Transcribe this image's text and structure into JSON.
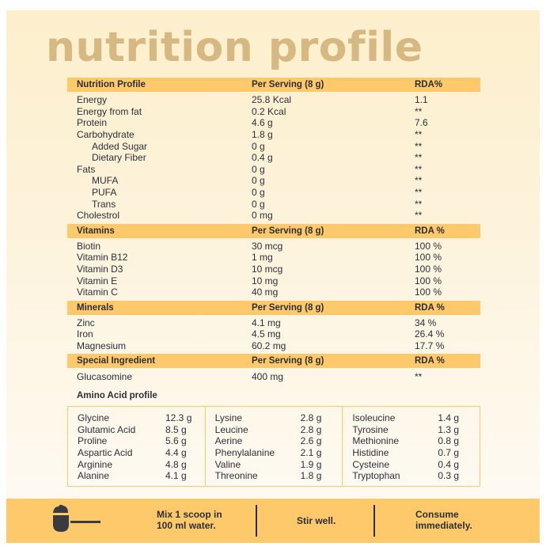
{
  "title": "nutrition profile",
  "sections": [
    {
      "header": [
        "Nutrition Profile",
        "Per Serving (8 g)",
        "RDA%"
      ],
      "rows": [
        {
          "name": "Energy",
          "value": "25.8 Kcal",
          "rda": "1.1",
          "indent": false
        },
        {
          "name": "Energy from fat",
          "value": "0.2 Kcal",
          "rda": "**",
          "indent": false
        },
        {
          "name": "Protein",
          "value": "4.6 g",
          "rda": "7.6",
          "indent": false
        },
        {
          "name": "Carbohydrate",
          "value": "1.8 g",
          "rda": "**",
          "indent": false
        },
        {
          "name": "Added Sugar",
          "value": "0 g",
          "rda": "**",
          "indent": true
        },
        {
          "name": "Dietary Fiber",
          "value": "0.4 g",
          "rda": "**",
          "indent": true
        },
        {
          "name": "Fats",
          "value": "0 g",
          "rda": "**",
          "indent": false
        },
        {
          "name": "MUFA",
          "value": "0 g",
          "rda": "**",
          "indent": true
        },
        {
          "name": "PUFA",
          "value": "0 g",
          "rda": "**",
          "indent": true
        },
        {
          "name": "Trans",
          "value": "0 g",
          "rda": "**",
          "indent": true
        },
        {
          "name": "Cholestrol",
          "value": "0 mg",
          "rda": "**",
          "indent": false
        }
      ]
    },
    {
      "header": [
        "Vitamins",
        "Per Serving (8 g)",
        "RDA %"
      ],
      "rows": [
        {
          "name": "Biotin",
          "value": "30 mcg",
          "rda": "100 %"
        },
        {
          "name": "Vitamin B12",
          "value": "1 mg",
          "rda": "100 %"
        },
        {
          "name": "Vitamin D3",
          "value": "10 mcg",
          "rda": "100 %"
        },
        {
          "name": "Vitamin E",
          "value": "10 mg",
          "rda": "100 %"
        },
        {
          "name": "Vitamin C",
          "value": "40 mg",
          "rda": "100 %"
        }
      ]
    },
    {
      "header": [
        "Minerals",
        "Per Serving (8 g)",
        "RDA %"
      ],
      "rows": [
        {
          "name": "Zinc",
          "value": "4.1 mg",
          "rda": "34 %"
        },
        {
          "name": "Iron",
          "value": "4.5 mg",
          "rda": "26.4 %"
        },
        {
          "name": "Magnesium",
          "value": "60.2 mg",
          "rda": "17.7 %"
        }
      ]
    },
    {
      "header": [
        "Special Ingredient",
        "Per Serving (8 g)",
        "RDA %"
      ],
      "rows": [
        {
          "name": "Glucasomine",
          "value": "400 mg",
          "rda": "**"
        }
      ]
    }
  ],
  "amino": {
    "title": "Amino Acid profile",
    "columns": [
      [
        [
          "Glycine",
          "12.3 g"
        ],
        [
          "Glutamic Acid",
          "8.5 g"
        ],
        [
          "Proline",
          "5.6 g"
        ],
        [
          "Aspartic Acid",
          "4.4 g"
        ],
        [
          "Arginine",
          "4.8 g"
        ],
        [
          "Alanine",
          "4.1 g"
        ]
      ],
      [
        [
          "Lysine",
          "2.8 g"
        ],
        [
          "Leucine",
          "2.8 g"
        ],
        [
          "Aerine",
          "2.6 g"
        ],
        [
          "Phenylalanine",
          "2.1 g"
        ],
        [
          "Valine",
          "1.9 g"
        ],
        [
          "Threonine",
          "1.8 g"
        ]
      ],
      [
        [
          "Isoleucine",
          "1.4 g"
        ],
        [
          "Tyrosine",
          "1.3 g"
        ],
        [
          "Methionine",
          "0.8 g"
        ],
        [
          "Histidine",
          "0.7 g"
        ],
        [
          "Cysteine",
          "0.4 g"
        ],
        [
          "Tryptophan",
          "0.3 g"
        ]
      ]
    ]
  },
  "instructions": {
    "icon": "scoop-icon",
    "steps": [
      [
        "Mix 1 scoop in",
        "100 ml water."
      ],
      [
        "Stir well."
      ],
      [
        "Consume",
        "immediately."
      ]
    ]
  },
  "colors": {
    "accent": "#fdc96b",
    "title": "#d6b882",
    "background": "#fdefcc"
  }
}
